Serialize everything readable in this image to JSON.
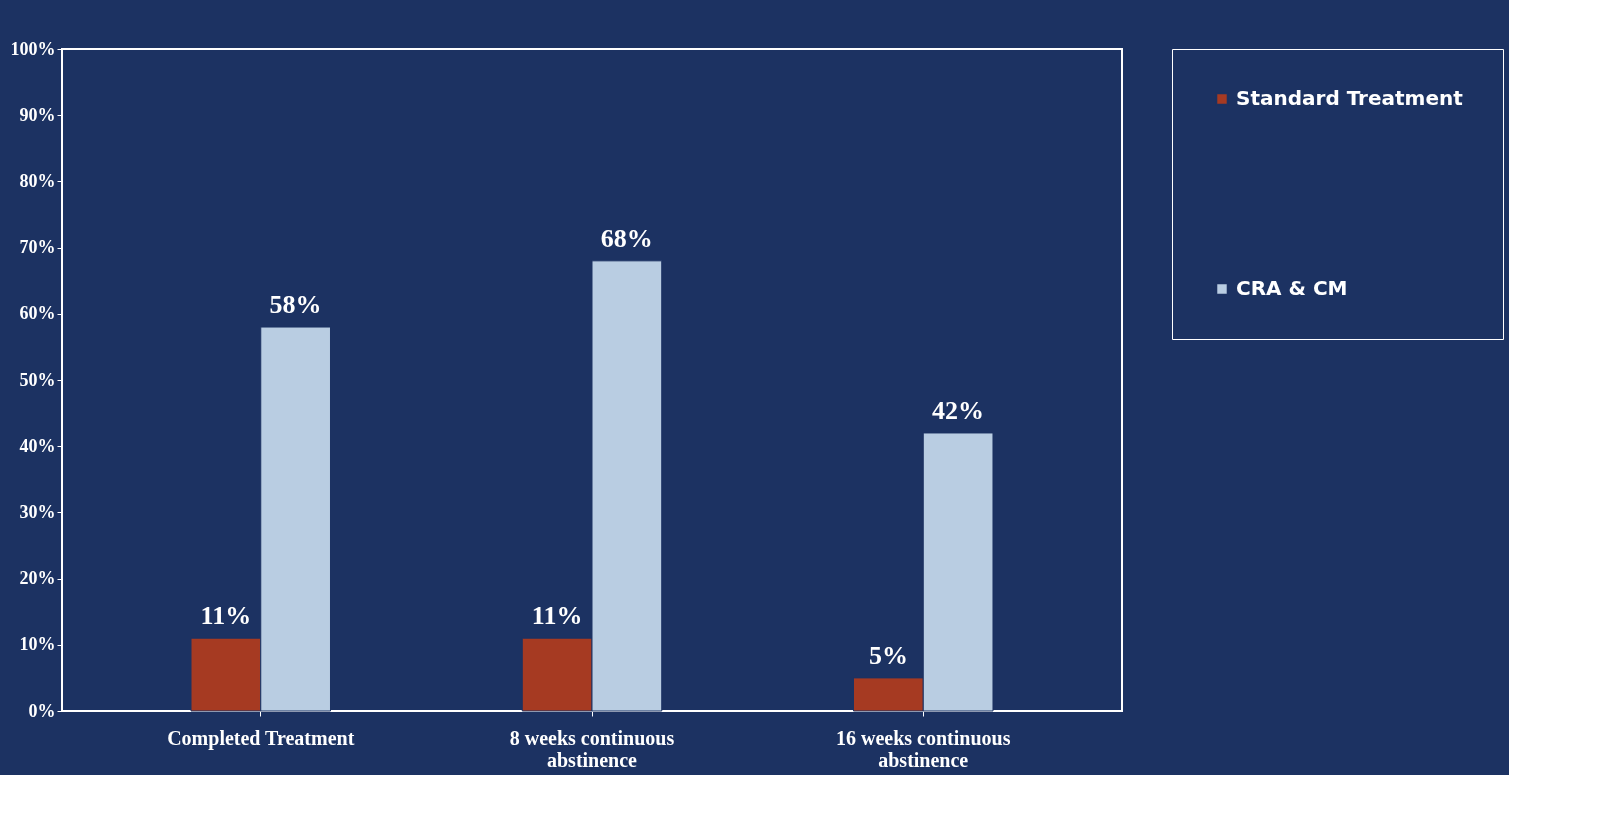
{
  "chart_data": {
    "type": "bar",
    "categories": [
      "Completed Treatment",
      "8 weeks continuous abstinence",
      "16 weeks continuous abstinence"
    ],
    "series": [
      {
        "name": "Standard Treatment",
        "color": "#a63a22",
        "values": [
          11,
          11,
          5
        ],
        "value_labels": [
          "11%",
          "11%",
          "5%"
        ]
      },
      {
        "name": "CRA & CM",
        "color": "#b9cde2",
        "values": [
          58,
          68,
          42
        ],
        "value_labels": [
          "58%",
          "68%",
          "42%"
        ]
      }
    ],
    "ylim": [
      0,
      100
    ],
    "yticks": [
      {
        "value": 0,
        "label": "0%"
      },
      {
        "value": 10,
        "label": "10%"
      },
      {
        "value": 20,
        "label": "20%"
      },
      {
        "value": 30,
        "label": "30%"
      },
      {
        "value": 40,
        "label": "40%"
      },
      {
        "value": 50,
        "label": "50%"
      },
      {
        "value": 60,
        "label": "60%"
      },
      {
        "value": 70,
        "label": "70%"
      },
      {
        "value": 80,
        "label": "80%"
      },
      {
        "value": 90,
        "label": "90%"
      },
      {
        "value": 100,
        "label": "100%"
      }
    ],
    "grid": false,
    "legend": "right"
  }
}
